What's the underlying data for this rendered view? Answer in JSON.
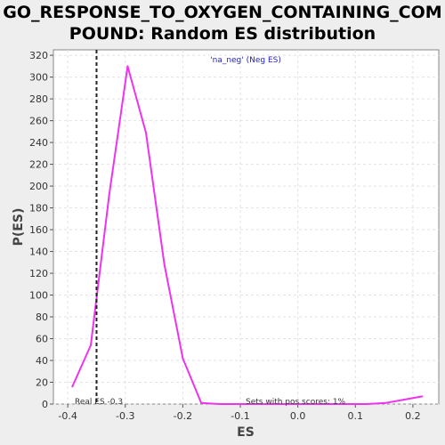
{
  "title_line1": "GO_RESPONSE_TO_OXYGEN_CONTAINING_COM",
  "title_line2": "POUND: Random ES distribution",
  "chart_data": {
    "type": "line",
    "xlabel": "ES",
    "ylabel": "P(ES)",
    "xlim": [
      -0.425,
      0.245
    ],
    "ylim": [
      0,
      325
    ],
    "xticks": [
      -0.4,
      -0.3,
      -0.2,
      -0.1,
      0.0,
      0.1,
      0.2
    ],
    "xtick_labels": [
      "-0.4",
      "-0.3",
      "-0.2",
      "-0.1",
      "0.0",
      "0.1",
      "0.2"
    ],
    "yticks": [
      0,
      20,
      40,
      60,
      80,
      100,
      120,
      140,
      160,
      180,
      200,
      220,
      240,
      260,
      280,
      300,
      320
    ],
    "grid": true,
    "legend_position": "top-center",
    "series": [
      {
        "name": "'na_neg' (Neg ES)",
        "color": "#ee33ee",
        "x": [
          -0.392,
          -0.36,
          -0.328,
          -0.296,
          -0.264,
          -0.232,
          -0.2,
          -0.168,
          -0.136,
          -0.104,
          -0.072,
          -0.04,
          -0.008,
          0.024,
          0.056,
          0.088,
          0.12,
          0.152,
          0.184,
          0.216
        ],
        "y": [
          16,
          54,
          192,
          310,
          249,
          128,
          42,
          1,
          0,
          0,
          0,
          0,
          0,
          0,
          0,
          0,
          0,
          1,
          4,
          7
        ]
      }
    ],
    "real_es": {
      "x": -0.35,
      "label": "Real ES -0.3"
    },
    "annotation": "Sets with pos scores: 1%"
  }
}
